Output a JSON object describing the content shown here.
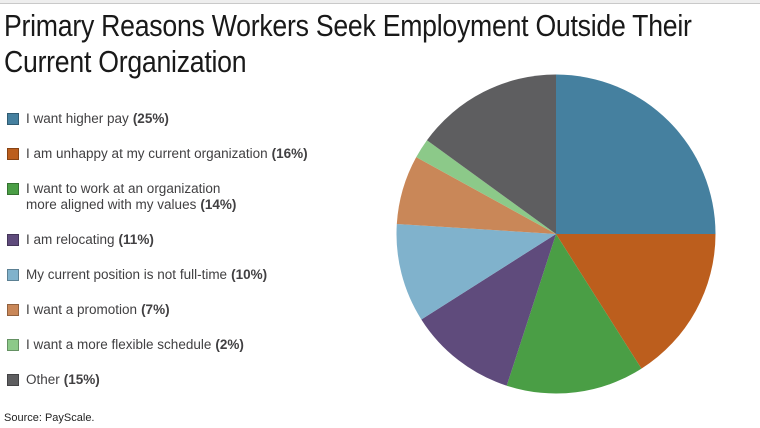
{
  "title": "Primary Reasons Workers Seek Employment Outside Their\nCurrent Organization",
  "source": "Source: PayScale.",
  "chart_data": {
    "type": "pie",
    "title": "Primary Reasons Workers Seek Employment Outside Their Current Organization",
    "start_angle": "12 o'clock",
    "direction": "clockwise",
    "legend_position": "left",
    "slices": [
      {
        "label": "I want higher pay",
        "value": 25,
        "percent_label": "(25%)",
        "color": "#45809F"
      },
      {
        "label": "I am unhappy at my current organization",
        "value": 16,
        "percent_label": "(16%)",
        "color": "#BC5E1D"
      },
      {
        "label": "I want to work at an organization\nmore aligned with my values",
        "value": 14,
        "percent_label": "(14%)",
        "color": "#4A9E45"
      },
      {
        "label": "I am relocating",
        "value": 11,
        "percent_label": "(11%)",
        "color": "#5F4B7C"
      },
      {
        "label": "My current position is not full-time",
        "value": 10,
        "percent_label": "(10%)",
        "color": "#80B2CC"
      },
      {
        "label": "I want a promotion",
        "value": 7,
        "percent_label": "(7%)",
        "color": "#C98758"
      },
      {
        "label": "I want a more flexible schedule",
        "value": 2,
        "percent_label": "(2%)",
        "color": "#8CC989"
      },
      {
        "label": "Other",
        "value": 15,
        "percent_label": "(15%)",
        "color": "#5E5E60"
      }
    ]
  }
}
